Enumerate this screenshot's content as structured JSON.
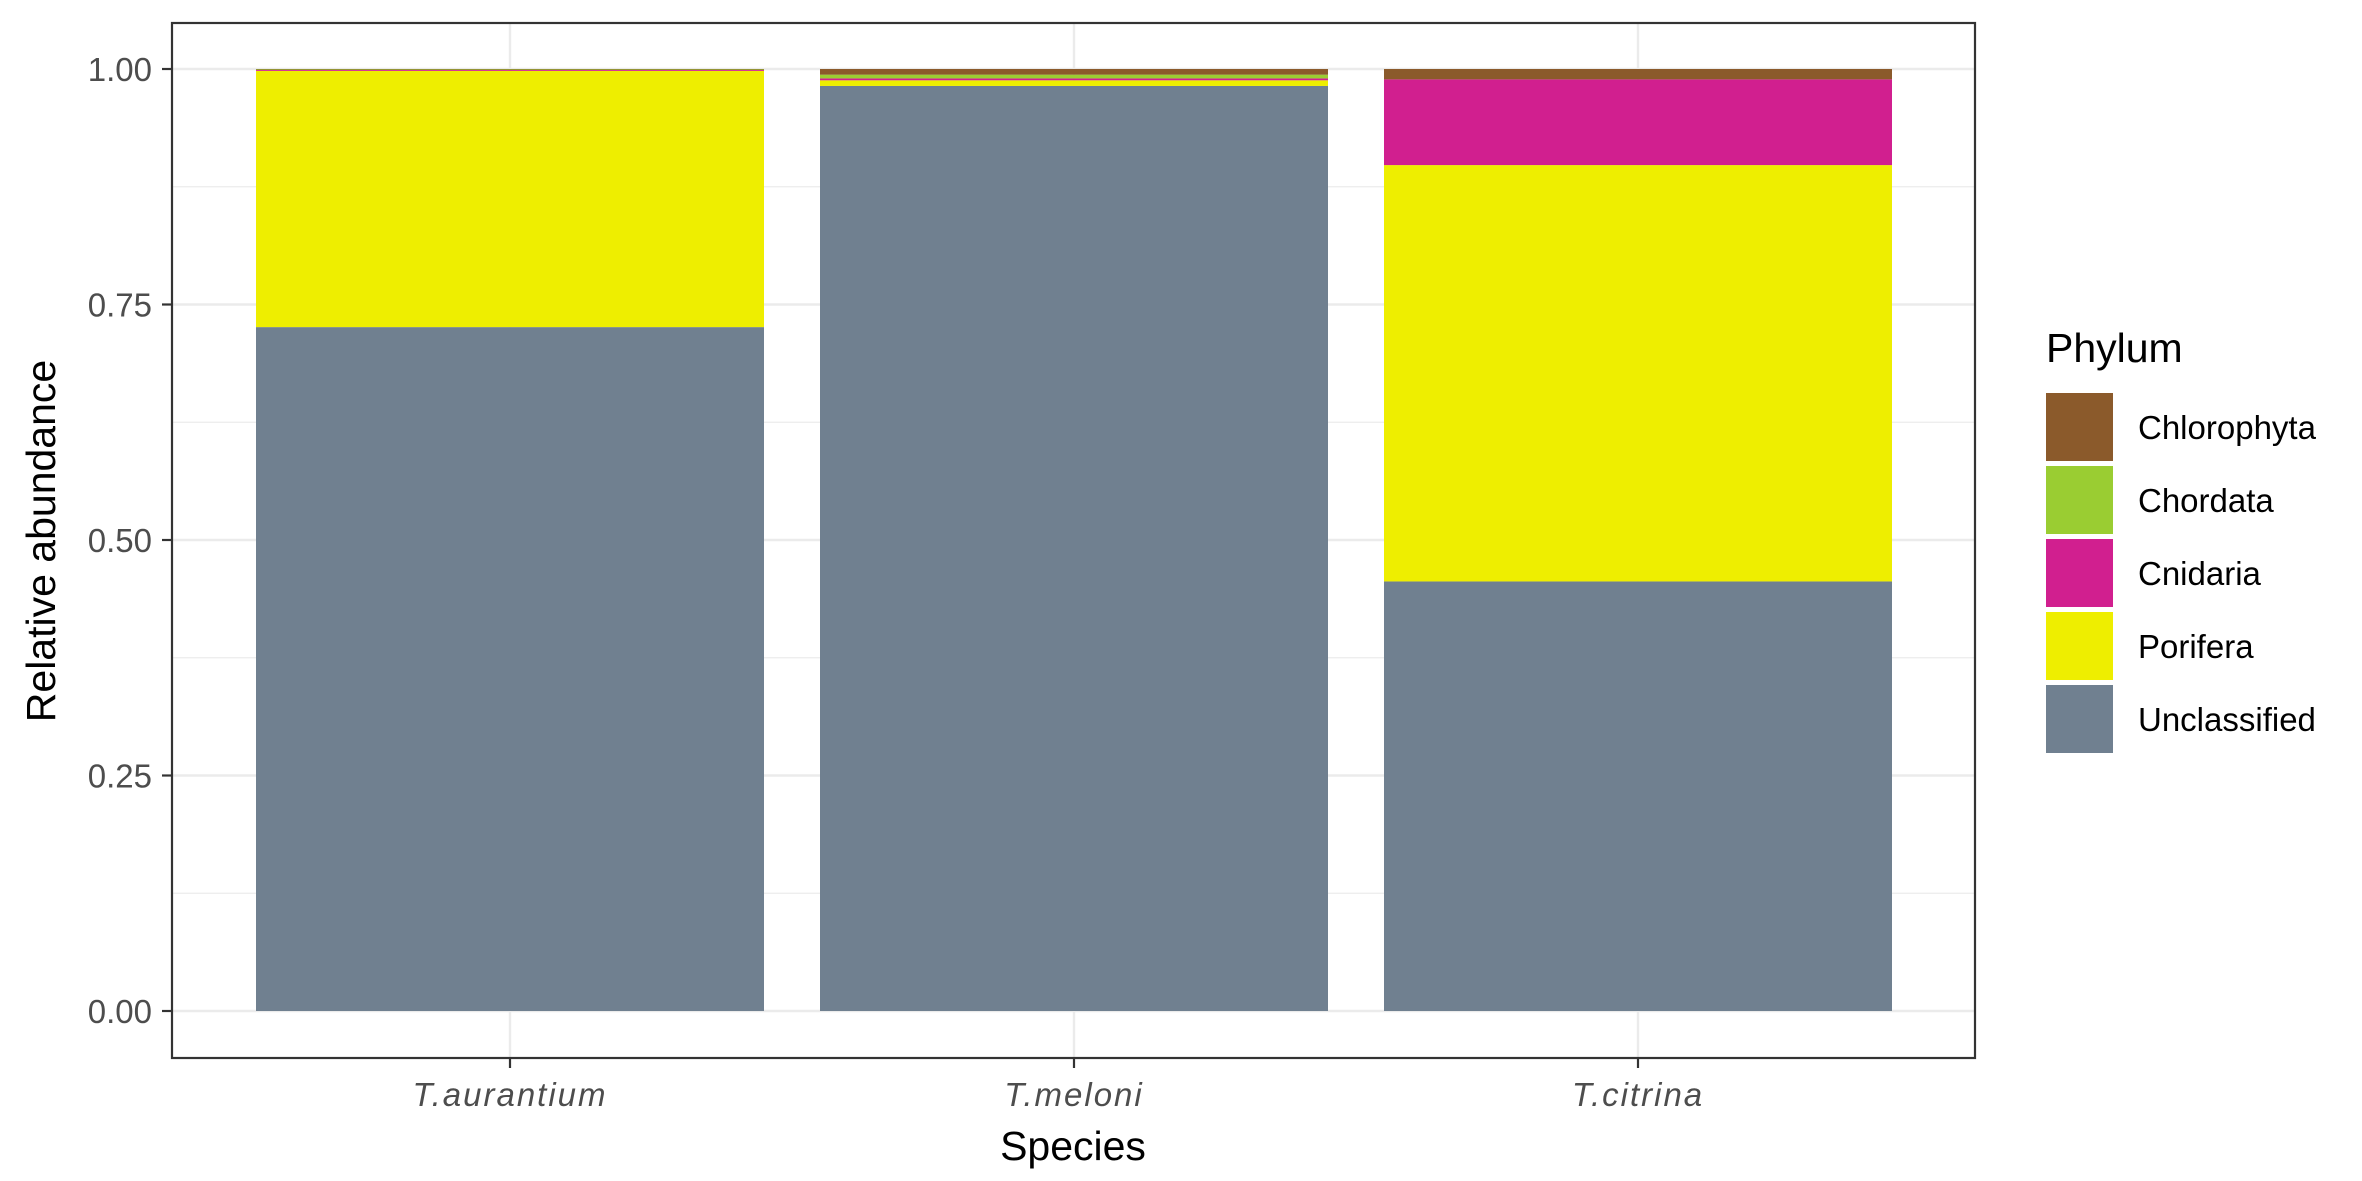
{
  "chart_data": {
    "type": "bar",
    "stacked": true,
    "categories": [
      "T.aurantium",
      "T.meloni",
      "T.citrina"
    ],
    "xlabel": "Species",
    "ylabel": "Relative abundance",
    "ylim": [
      0,
      1.05
    ],
    "yticks": [
      "0.00",
      "0.25",
      "0.50",
      "0.75",
      "1.00"
    ],
    "grid": true,
    "legend": {
      "title": "Phylum",
      "placement": "right"
    },
    "series": [
      {
        "name": "Unclassified",
        "color": "#708090",
        "values": [
          0.726,
          0.982,
          0.456
        ]
      },
      {
        "name": "Porifera",
        "color": "#EEEE00",
        "values": [
          0.272,
          0.006,
          0.442
        ]
      },
      {
        "name": "Cnidaria",
        "color": "#D11F8F",
        "values": [
          0.001,
          0.002,
          0.091
        ]
      },
      {
        "name": "Chordata",
        "color": "#9ACD32",
        "values": [
          0.0005,
          0.004,
          0.0
        ]
      },
      {
        "name": "Chlorophyta",
        "color": "#8B5A2B",
        "values": [
          0.0005,
          0.006,
          0.011
        ]
      }
    ],
    "legend_order": [
      "Chlorophyta",
      "Chordata",
      "Cnidaria",
      "Porifera",
      "Unclassified"
    ]
  }
}
